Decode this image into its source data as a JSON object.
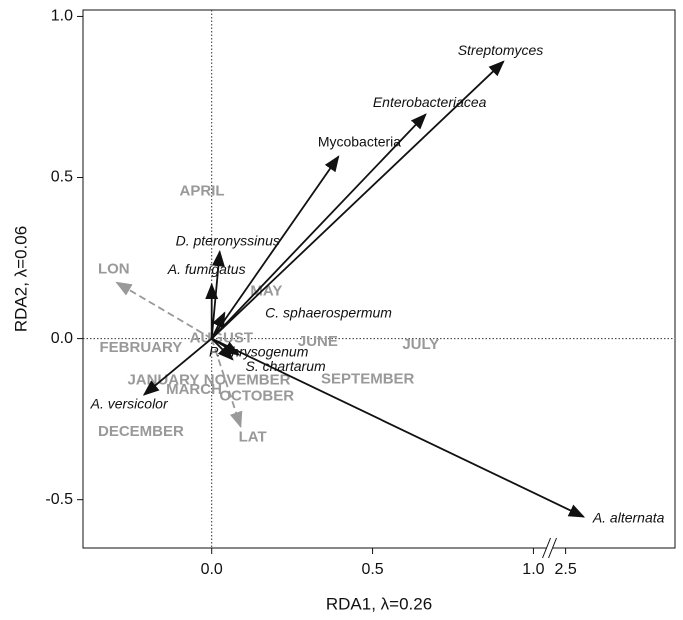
{
  "chart_data": {
    "type": "biplot",
    "xlabel": "RDA1, λ=0.26",
    "ylabel": "RDA2, λ=0.06",
    "xlim": [
      -0.4,
      2.84
    ],
    "ylim": [
      -0.65,
      1.02
    ],
    "x_break": [
      1.05,
      2.45
    ],
    "xticks": [
      {
        "value": 0,
        "label": "0.0"
      },
      0.5,
      {
        "value": 1,
        "label": "1.0"
      },
      2.5
    ],
    "yticks": [
      -0.5,
      {
        "value": 0,
        "label": "0.0"
      },
      0.5,
      {
        "value": 1,
        "label": "1.0"
      }
    ],
    "arrows": [
      {
        "label": "Streptomyces",
        "x": 0.907,
        "y": 0.86
      },
      {
        "label": "Enterobacteriacea",
        "x": 0.665,
        "y": 0.696
      },
      {
        "label": "Mycobacteria",
        "x": 0.394,
        "y": 0.565
      },
      {
        "label": "D. pteronyssinus",
        "x": 0.025,
        "y": 0.27
      },
      {
        "label": "A. fumigatus",
        "x": 0.0,
        "y": 0.168
      },
      {
        "label": "C. sphaerospermum",
        "x": 0.04,
        "y": 0.08
      },
      {
        "label": "P. chrysogenum",
        "x": 0.084,
        "y": -0.05
      },
      {
        "label": "S. chartarum",
        "x": 0.065,
        "y": -0.065
      },
      {
        "label": "A. versicolor",
        "x": -0.21,
        "y": -0.174
      },
      {
        "label": "A. alternata",
        "x": 2.556,
        "y": -0.553
      }
    ],
    "env_arrows": [
      {
        "label": "LON",
        "x": -0.295,
        "y": 0.174
      },
      {
        "label": "LAT",
        "x": 0.09,
        "y": -0.273
      }
    ],
    "sites": [
      {
        "label": "APRIL",
        "x": -0.03,
        "y": 0.457
      },
      {
        "label": "MAY",
        "x": 0.17,
        "y": 0.146
      },
      {
        "label": "JUNE",
        "x": 0.33,
        "y": -0.01
      },
      {
        "label": "JULY",
        "x": 0.65,
        "y": -0.02
      },
      {
        "label": "AUGUST",
        "x": 0.03,
        "y": 0.0
      },
      {
        "label": "SEPTEMBER",
        "x": 0.485,
        "y": -0.127
      },
      {
        "label": "OCTOBER",
        "x": 0.14,
        "y": -0.18
      },
      {
        "label": "NOVEMBER",
        "x": 0.11,
        "y": -0.13
      },
      {
        "label": "DECEMBER",
        "x": -0.22,
        "y": -0.29
      },
      {
        "label": "JANUARY",
        "x": -0.15,
        "y": -0.13
      },
      {
        "label": "FEBRUARY",
        "x": -0.22,
        "y": -0.03
      },
      {
        "label": "MARCH",
        "x": -0.055,
        "y": -0.16
      }
    ]
  }
}
